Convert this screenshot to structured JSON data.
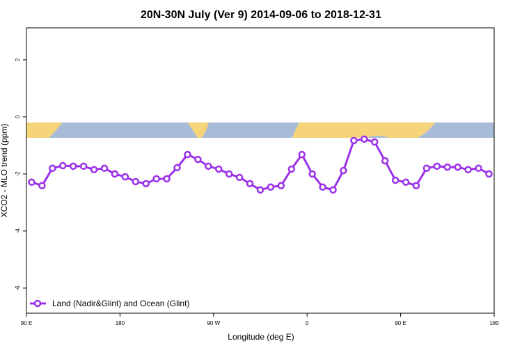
{
  "chart_data": {
    "type": "line",
    "title": "20N-30N July (Ver 9)   2014-09-06 to 2018-12-31",
    "x_label": "Longitude (deg E)",
    "y_label": "XCO2 - MLO trend (ppm)",
    "x": [
      95,
      105,
      115,
      125,
      135,
      145,
      155,
      165,
      175,
      185,
      195,
      205,
      215,
      225,
      235,
      245,
      255,
      265,
      275,
      285,
      295,
      305,
      315,
      325,
      335,
      345,
      355,
      365,
      375,
      385,
      395,
      405,
      415,
      425,
      435,
      445,
      455,
      465,
      475,
      485,
      495,
      505,
      515,
      525,
      535
    ],
    "series": [
      {
        "name": "Land (Nadir&Glint) and Ocean (Glint)",
        "color": "#9b30e8",
        "values": [
          -2.29,
          -2.41,
          -1.8,
          -1.71,
          -1.73,
          -1.73,
          -1.85,
          -1.8,
          -2.0,
          -2.1,
          -2.27,
          -2.34,
          -2.17,
          -2.17,
          -1.78,
          -1.32,
          -1.49,
          -1.73,
          -1.83,
          -2.0,
          -2.12,
          -2.34,
          -2.56,
          -2.46,
          -2.41,
          -1.83,
          -1.32,
          -2.0,
          -2.46,
          -2.56,
          -1.88,
          -0.83,
          -0.78,
          -0.88,
          -1.54,
          -2.22,
          -2.29,
          -2.41,
          -1.8,
          -1.73,
          -1.76,
          -1.76,
          -1.85,
          -1.8,
          -2.0
        ]
      }
    ],
    "xlim": [
      90,
      540
    ],
    "xticks": [
      {
        "value": 90,
        "label": "90 E"
      },
      {
        "value": 180,
        "label": "180"
      },
      {
        "value": 270,
        "label": "90 W"
      },
      {
        "value": 360,
        "label": "0"
      },
      {
        "value": 450,
        "label": "90 E"
      },
      {
        "value": 540,
        "label": "180"
      }
    ],
    "ylim": [
      -6.88,
      3.12
    ],
    "yticks": [
      -6,
      -4,
      -2,
      0,
      2
    ],
    "legend": "bottom-left"
  }
}
